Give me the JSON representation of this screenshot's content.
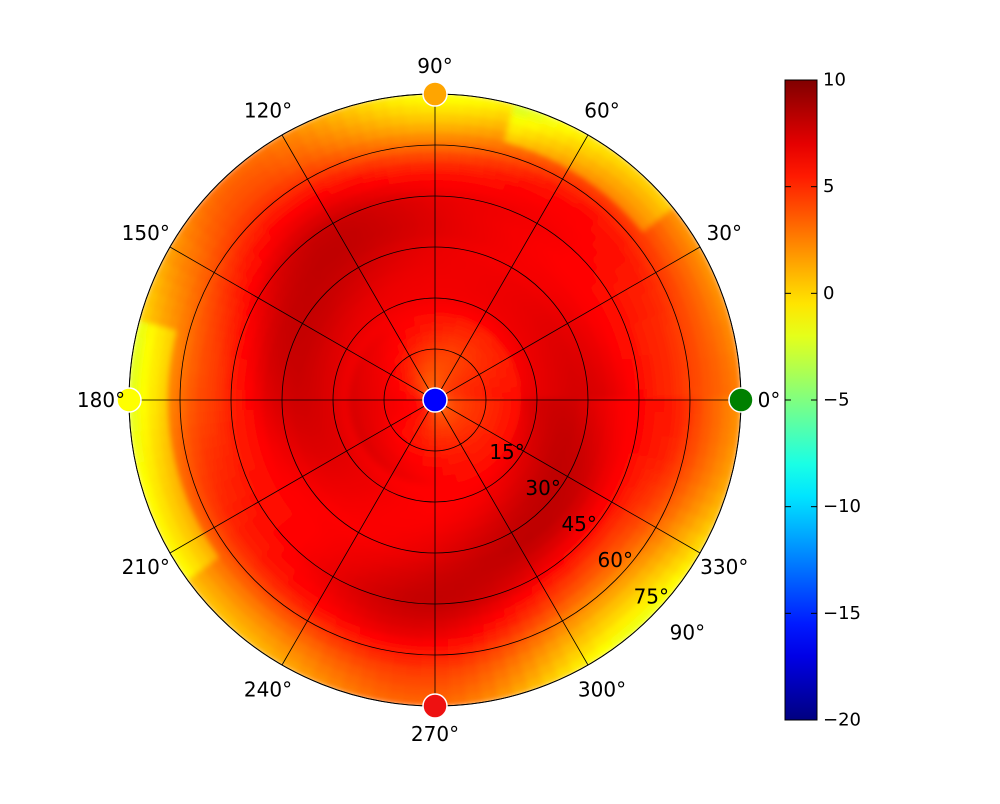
{
  "chart_data": {
    "type": "heatmap",
    "projection": "polar",
    "title": "",
    "angle_ticks": [
      {
        "angle": 0,
        "label": "0°"
      },
      {
        "angle": 30,
        "label": "30°"
      },
      {
        "angle": 60,
        "label": "60°"
      },
      {
        "angle": 90,
        "label": "90°"
      },
      {
        "angle": 120,
        "label": "120°"
      },
      {
        "angle": 150,
        "label": "150°"
      },
      {
        "angle": 180,
        "label": "180°"
      },
      {
        "angle": 210,
        "label": "210°"
      },
      {
        "angle": 240,
        "label": "240°"
      },
      {
        "angle": 270,
        "label": "270°"
      },
      {
        "angle": 300,
        "label": "300°"
      },
      {
        "angle": 330,
        "label": "330°"
      }
    ],
    "radial_ticks": [
      {
        "value": 15,
        "label": "15°"
      },
      {
        "value": 30,
        "label": "30°"
      },
      {
        "value": 45,
        "label": "45°"
      },
      {
        "value": 60,
        "label": "60°"
      },
      {
        "value": 75,
        "label": "75°"
      },
      {
        "value": 90,
        "label": "90°"
      }
    ],
    "radial_range": [
      0,
      90
    ],
    "radial_label_angle": 315,
    "colormap": "jet",
    "color_range": [
      -20,
      10
    ],
    "colorbar": {
      "ticks": [
        {
          "value": 10,
          "label": "10"
        },
        {
          "value": 5,
          "label": "5"
        },
        {
          "value": 0,
          "label": "0"
        },
        {
          "value": -5,
          "label": "−5"
        },
        {
          "value": -10,
          "label": "−10"
        },
        {
          "value": -15,
          "label": "−15"
        },
        {
          "value": -20,
          "label": "−20"
        }
      ]
    },
    "grid": true,
    "markers": [
      {
        "angle": 0,
        "r": 0,
        "value": -18,
        "color": "#0000ff"
      },
      {
        "angle": 0,
        "r": 90,
        "value": -7,
        "color": "#008000"
      },
      {
        "angle": 90,
        "r": 90,
        "value": 2,
        "color": "#ffa500"
      },
      {
        "angle": 180,
        "r": 90,
        "value": 0,
        "color": "#ffff00"
      },
      {
        "angle": 270,
        "r": 90,
        "value": 7,
        "color": "#ee1111"
      }
    ],
    "field": {
      "radial_profile": [
        {
          "r": 0,
          "value": 4.0
        },
        {
          "r": 10,
          "value": 5.0
        },
        {
          "r": 20,
          "value": 6.0
        },
        {
          "r": 30,
          "value": 6.8
        },
        {
          "r": 40,
          "value": 7.2
        },
        {
          "r": 50,
          "value": 7.2
        },
        {
          "r": 60,
          "value": 6.6
        },
        {
          "r": 70,
          "value": 5.2
        },
        {
          "r": 80,
          "value": 2.8
        },
        {
          "r": 90,
          "value": 0.8
        }
      ]
    }
  }
}
